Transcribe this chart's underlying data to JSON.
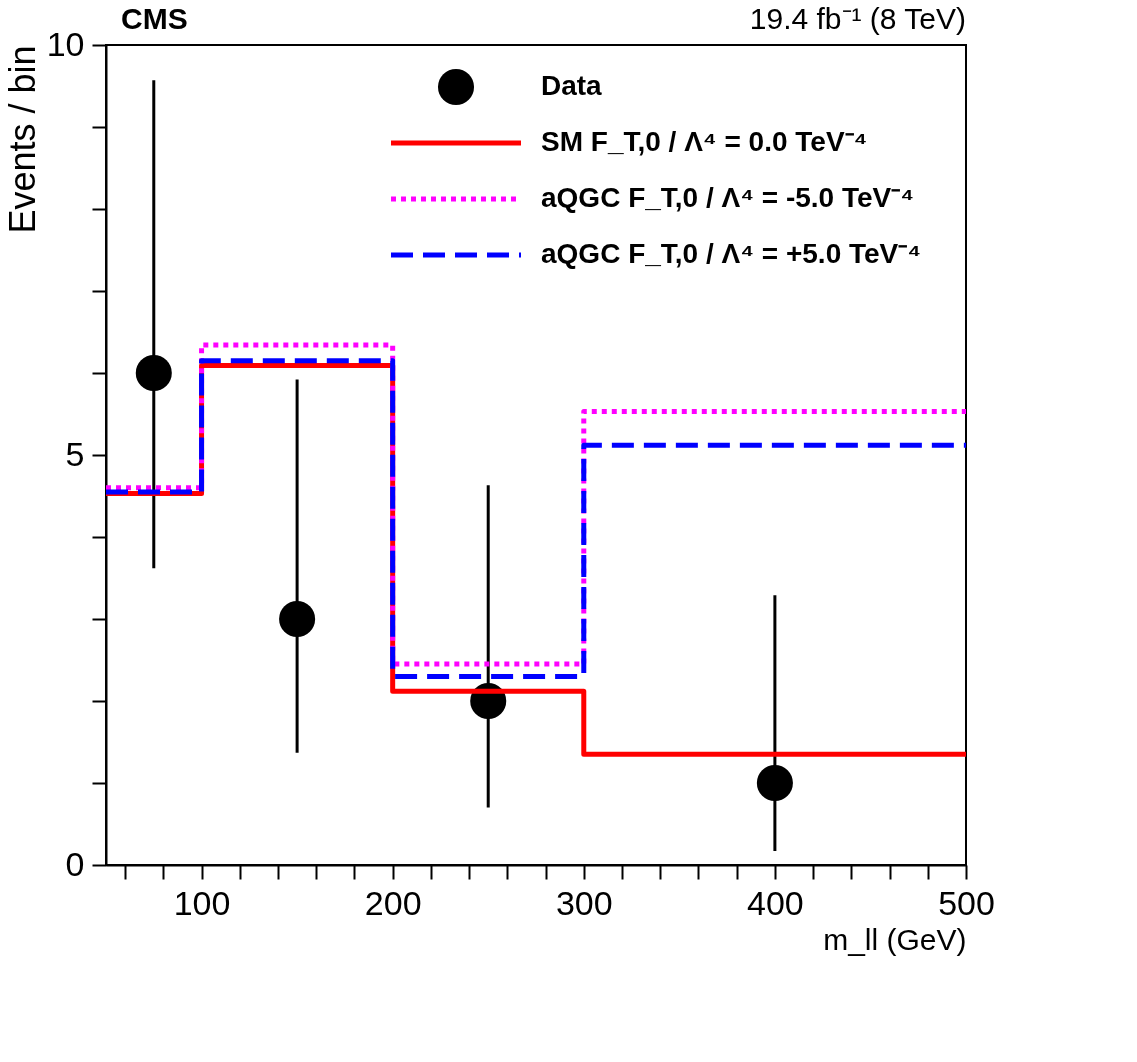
{
  "chart_data": {
    "type": "step",
    "title": "CMS",
    "subtitle": "19.4 fb⁻¹ (8 TeV)",
    "xlabel": "m_ll (GeV)",
    "ylabel": "Events / bin",
    "x": [
      50,
      100,
      200,
      300,
      500
    ],
    "series": [
      {
        "name": "Data",
        "type": "scatter",
        "color": "#000000",
        "x": [
          75,
          150,
          250,
          400
        ],
        "values": [
          6.0,
          3.0,
          2.0,
          1.0
        ],
        "errors": [
          [
            3.62,
            9.57
          ],
          [
            1.37,
            5.92
          ],
          [
            0.7,
            4.63
          ],
          [
            0.17,
            3.29
          ]
        ],
        "marker": "circle"
      },
      {
        "name": "SM F_T,0 / Λ⁴ = 0.0 TeV⁻⁴",
        "color": "#ff0000",
        "values": [
          4.53,
          6.09,
          2.12,
          1.35,
          1.35
        ],
        "line_style": "solid"
      },
      {
        "name": "aQGC F_T,0 / Λ⁴ = -5.0 TeV⁻⁴",
        "color": "#ff00ff",
        "values": [
          4.6,
          6.34,
          2.45,
          5.53,
          5.53
        ],
        "line_style": "dotted"
      },
      {
        "name": "aQGC F_T,0 / Λ⁴ = +5.0 TeV⁻⁴",
        "color": "#0000ff",
        "values": [
          4.55,
          6.15,
          2.3,
          5.12,
          5.12
        ],
        "line_style": "dashed"
      }
    ],
    "xlim": [
      50,
      500
    ],
    "ylim": [
      0,
      10
    ],
    "xticks": [
      {
        "value": 60,
        "label": null
      },
      {
        "value": 80,
        "label": null
      },
      100,
      {
        "value": 120,
        "label": null
      },
      {
        "value": 140,
        "label": null
      },
      {
        "value": 160,
        "label": null
      },
      {
        "value": 180,
        "label": null
      },
      200,
      {
        "value": 220,
        "label": null
      },
      {
        "value": 240,
        "label": null
      },
      {
        "value": 260,
        "label": null
      },
      {
        "value": 280,
        "label": null
      },
      300,
      {
        "value": 320,
        "label": null
      },
      {
        "value": 340,
        "label": null
      },
      {
        "value": 360,
        "label": null
      },
      {
        "value": 380,
        "label": null
      },
      400,
      {
        "value": 420,
        "label": null
      },
      {
        "value": 440,
        "label": null
      },
      {
        "value": 460,
        "label": null
      },
      {
        "value": 480,
        "label": null
      },
      500
    ],
    "yticks": [
      0,
      {
        "value": 1,
        "label": null
      },
      {
        "value": 2,
        "label": null
      },
      {
        "value": 3,
        "label": null
      },
      {
        "value": 4,
        "label": null
      },
      5,
      {
        "value": 6,
        "label": null
      },
      {
        "value": 7,
        "label": null
      },
      {
        "value": 8,
        "label": null
      },
      {
        "value": 9,
        "label": null
      },
      10
    ],
    "grid": false,
    "legend": "top right",
    "marker": "none"
  }
}
